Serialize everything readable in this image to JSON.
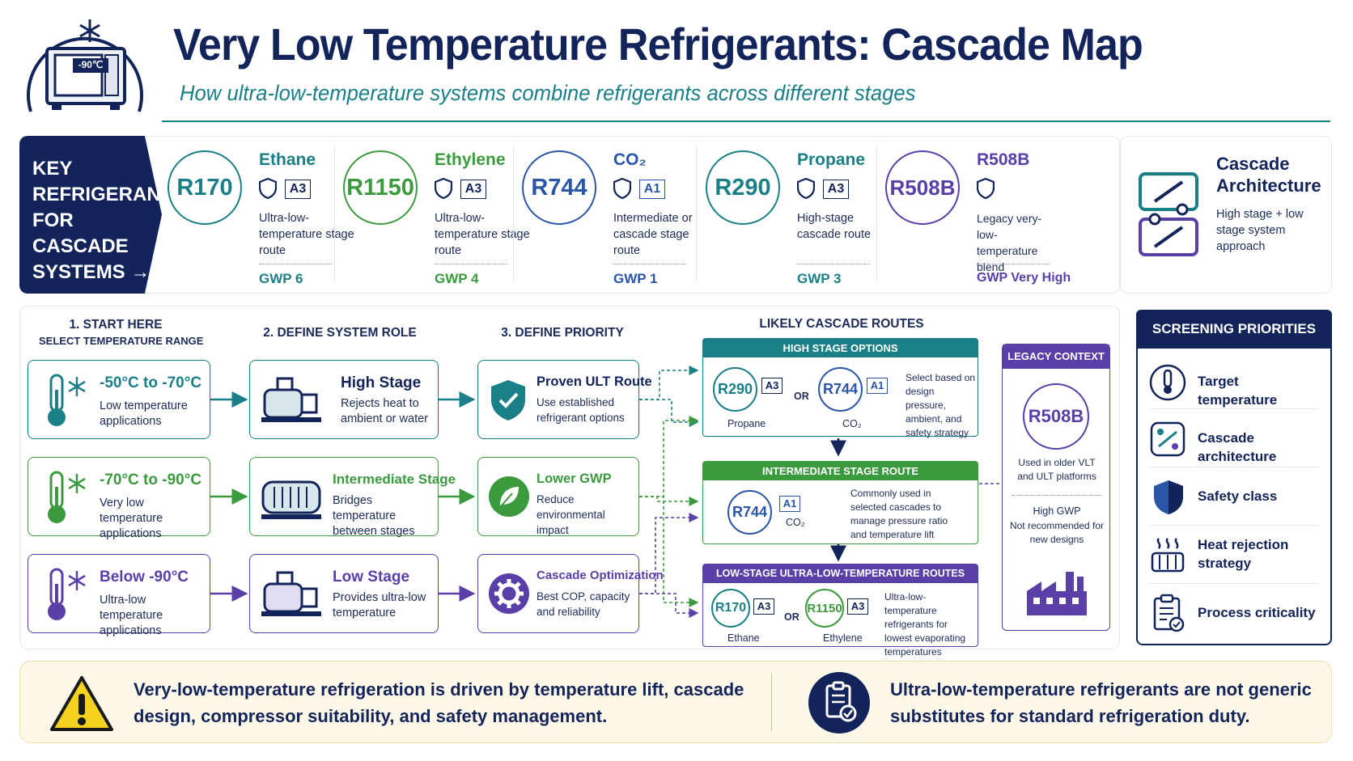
{
  "header": {
    "logo_display": "-90℃",
    "title": "Very Low Temperature Refrigerants: Cascade Map",
    "subtitle": "How ultra-low-temperature systems combine refrigerants across different stages"
  },
  "key_refrigerants": {
    "heading_lines": [
      "KEY",
      "REFRIGERANTS",
      "FOR CASCADE",
      "SYSTEMS →"
    ],
    "items": [
      {
        "code": "R170",
        "name": "Ethane",
        "safety_class": "A3",
        "description": "Ultra-low-temperature stage route",
        "gwp": "GWP 6",
        "color": "#1a7f86"
      },
      {
        "code": "R1150",
        "name": "Ethylene",
        "safety_class": "A3",
        "description": "Ultra-low-temperature stage route",
        "gwp": "GWP 4",
        "color": "#3c9a3e"
      },
      {
        "code": "R744",
        "name": "CO₂",
        "safety_class": "A1",
        "description": "Intermediate or cascade stage route",
        "gwp": "GWP 1",
        "color": "#2a56a8"
      },
      {
        "code": "R290",
        "name": "Propane",
        "safety_class": "A3",
        "description": "High-stage cascade route",
        "gwp": "GWP 3",
        "color": "#1a7f86"
      },
      {
        "code": "R508B",
        "name": "R508B",
        "safety_class": "",
        "description": "Legacy very-low-temperature blend",
        "gwp": "GWP Very High",
        "color": "#5a3fa8"
      }
    ],
    "architecture": {
      "title": "Cascade Architecture",
      "description": "High stage + low stage system approach"
    }
  },
  "flow": {
    "column_headers": {
      "start": "1. START HERE",
      "start_sub": "SELECT TEMPERATURE RANGE",
      "role": "2. DEFINE SYSTEM ROLE",
      "priority": "3. DEFINE PRIORITY",
      "routes": "LIKELY CASCADE ROUTES"
    },
    "temperature_ranges": [
      {
        "title": "-50°C to -70°C",
        "description": "Low temperature applications",
        "color": "#1a7f86"
      },
      {
        "title": "-70°C to -90°C",
        "description": "Very low temperature applications",
        "color": "#3c9a3e"
      },
      {
        "title": "Below -90°C",
        "description": "Ultra-low temperature applications",
        "color": "#5a3fa8"
      }
    ],
    "system_roles": [
      {
        "title": "High Stage",
        "description": "Rejects heat to ambient or water",
        "color": "#1a7f86"
      },
      {
        "title": "Intermediate Stage",
        "description": "Bridges temperature between stages",
        "color": "#3c9a3e"
      },
      {
        "title": "Low Stage",
        "description": "Provides ultra-low temperature",
        "color": "#5a3fa8"
      }
    ],
    "priorities": [
      {
        "title": "Proven ULT Route",
        "description": "Use established refrigerant options",
        "color": "#1a7f86"
      },
      {
        "title": "Lower GWP",
        "description": "Reduce environmental impact",
        "color": "#3c9a3e"
      },
      {
        "title": "Cascade Optimization",
        "description": "Best COP, capacity and reliability",
        "color": "#5a3fa8"
      }
    ],
    "routes": {
      "high": {
        "bar": "HIGH STAGE OPTIONS",
        "a_code": "R290",
        "a_class": "A3",
        "a_label": "Propane",
        "or": "OR",
        "b_code": "R744",
        "b_class": "A1",
        "b_label": "CO₂",
        "note": "Select based on design pressure, ambient, and safety strategy"
      },
      "intermediate": {
        "bar": "INTERMEDIATE STAGE ROUTE",
        "a_code": "R744",
        "a_class": "A1",
        "a_label": "CO₂",
        "note": "Commonly used in selected cascades to manage pressure ratio and temperature lift"
      },
      "low": {
        "bar": "LOW-STAGE ULTRA-LOW-TEMPERATURE ROUTES",
        "a_code": "R170",
        "a_class": "A3",
        "a_label": "Ethane",
        "or": "OR",
        "b_code": "R1150",
        "b_class": "A3",
        "b_label": "Ethylene",
        "note": "Ultra-low-temperature refrigerants for lowest evaporating temperatures"
      }
    },
    "legacy": {
      "bar": "LEGACY CONTEXT",
      "code": "R508B",
      "description": "Used in older VLT and ULT platforms",
      "gwp_title": "High GWP",
      "gwp_note": "Not recommended for new designs"
    }
  },
  "screening": {
    "title": "SCREENING PRIORITIES",
    "items": [
      {
        "label": "Target temperature",
        "icon": "thermometer-icon"
      },
      {
        "label": "Cascade architecture",
        "icon": "cascade-icon"
      },
      {
        "label": "Safety class",
        "icon": "shield-icon"
      },
      {
        "label": "Heat rejection strategy",
        "icon": "heat-rejection-icon"
      },
      {
        "label": "Process criticality",
        "icon": "clipboard-icon"
      }
    ]
  },
  "footer": {
    "left": "Very-low-temperature refrigeration is driven by temperature lift, cascade design, compressor suitability, and safety management.",
    "right": "Ultra-low-temperature refrigerants are not generic substitutes for standard refrigeration duty."
  }
}
